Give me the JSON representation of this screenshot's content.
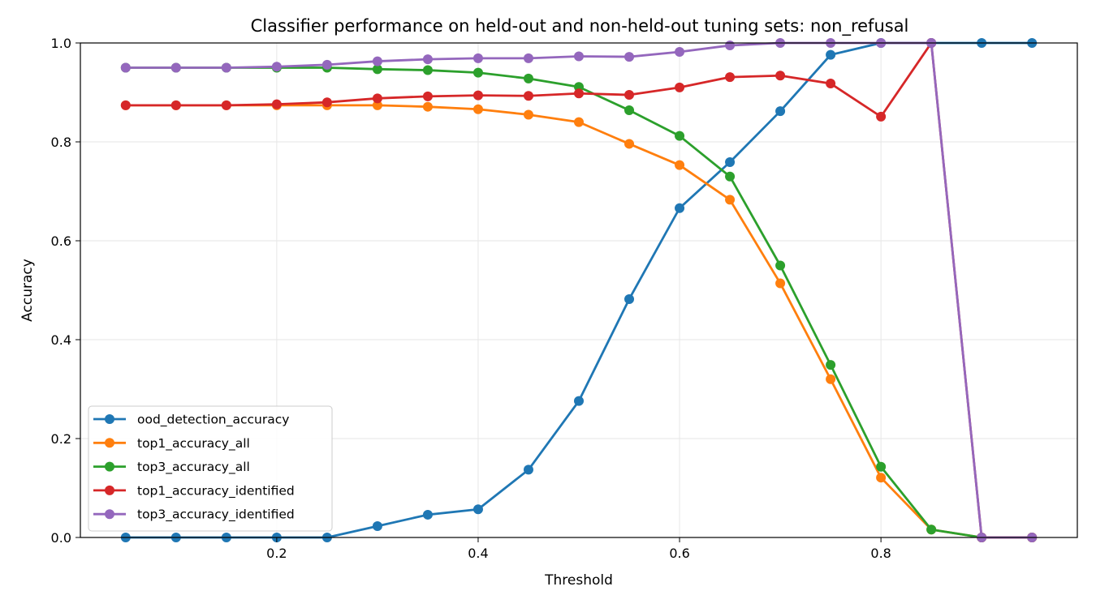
{
  "chart_data": {
    "type": "line",
    "title": "Classifier performance on held-out and non-held-out tuning sets: non_refusal",
    "xlabel": "Threshold",
    "ylabel": "Accuracy",
    "xlim": [
      0.0,
      1.0
    ],
    "ylim": [
      0.0,
      1.0
    ],
    "x_ticks": [
      "0.2",
      "0.4",
      "0.6",
      "0.8"
    ],
    "y_ticks": [
      "0.0",
      "0.2",
      "0.4",
      "0.6",
      "0.8",
      "1.0"
    ],
    "grid": true,
    "legend_position": "lower-left",
    "x": [
      0.05,
      0.1,
      0.15,
      0.2,
      0.25,
      0.3,
      0.35,
      0.4,
      0.45,
      0.5,
      0.55,
      0.6,
      0.65,
      0.7,
      0.75,
      0.8,
      0.85,
      0.9,
      0.95
    ],
    "series": [
      {
        "name": "ood_detection_accuracy",
        "color": "#1f77b4",
        "values": [
          0.0,
          0.0,
          0.0,
          0.0,
          0.0,
          0.023,
          0.046,
          0.057,
          0.137,
          0.276,
          0.482,
          0.666,
          0.759,
          0.862,
          0.976,
          1.0,
          1.0,
          1.0,
          1.0
        ]
      },
      {
        "name": "top1_accuracy_all",
        "color": "#ff7f0e",
        "values": [
          0.874,
          0.874,
          0.874,
          0.874,
          0.874,
          0.874,
          0.871,
          0.866,
          0.855,
          0.84,
          0.796,
          0.753,
          0.683,
          0.514,
          0.32,
          0.121,
          0.016,
          0.0,
          0.0
        ]
      },
      {
        "name": "top3_accuracy_all",
        "color": "#2ca02c",
        "values": [
          0.95,
          0.95,
          0.95,
          0.95,
          0.95,
          0.947,
          0.945,
          0.94,
          0.928,
          0.911,
          0.864,
          0.812,
          0.73,
          0.55,
          0.349,
          0.143,
          0.016,
          0.0,
          0.0
        ]
      },
      {
        "name": "top1_accuracy_identified",
        "color": "#d62728",
        "values": [
          0.874,
          0.874,
          0.874,
          0.876,
          0.88,
          0.888,
          0.892,
          0.894,
          0.893,
          0.898,
          0.895,
          0.91,
          0.931,
          0.934,
          0.918,
          0.851,
          1.0,
          0.0,
          0.0
        ]
      },
      {
        "name": "top3_accuracy_identified",
        "color": "#9467bd",
        "values": [
          0.95,
          0.95,
          0.95,
          0.952,
          0.956,
          0.963,
          0.967,
          0.969,
          0.969,
          0.973,
          0.972,
          0.982,
          0.995,
          1.0,
          1.0,
          1.0,
          1.0,
          0.0,
          0.0
        ]
      }
    ]
  }
}
